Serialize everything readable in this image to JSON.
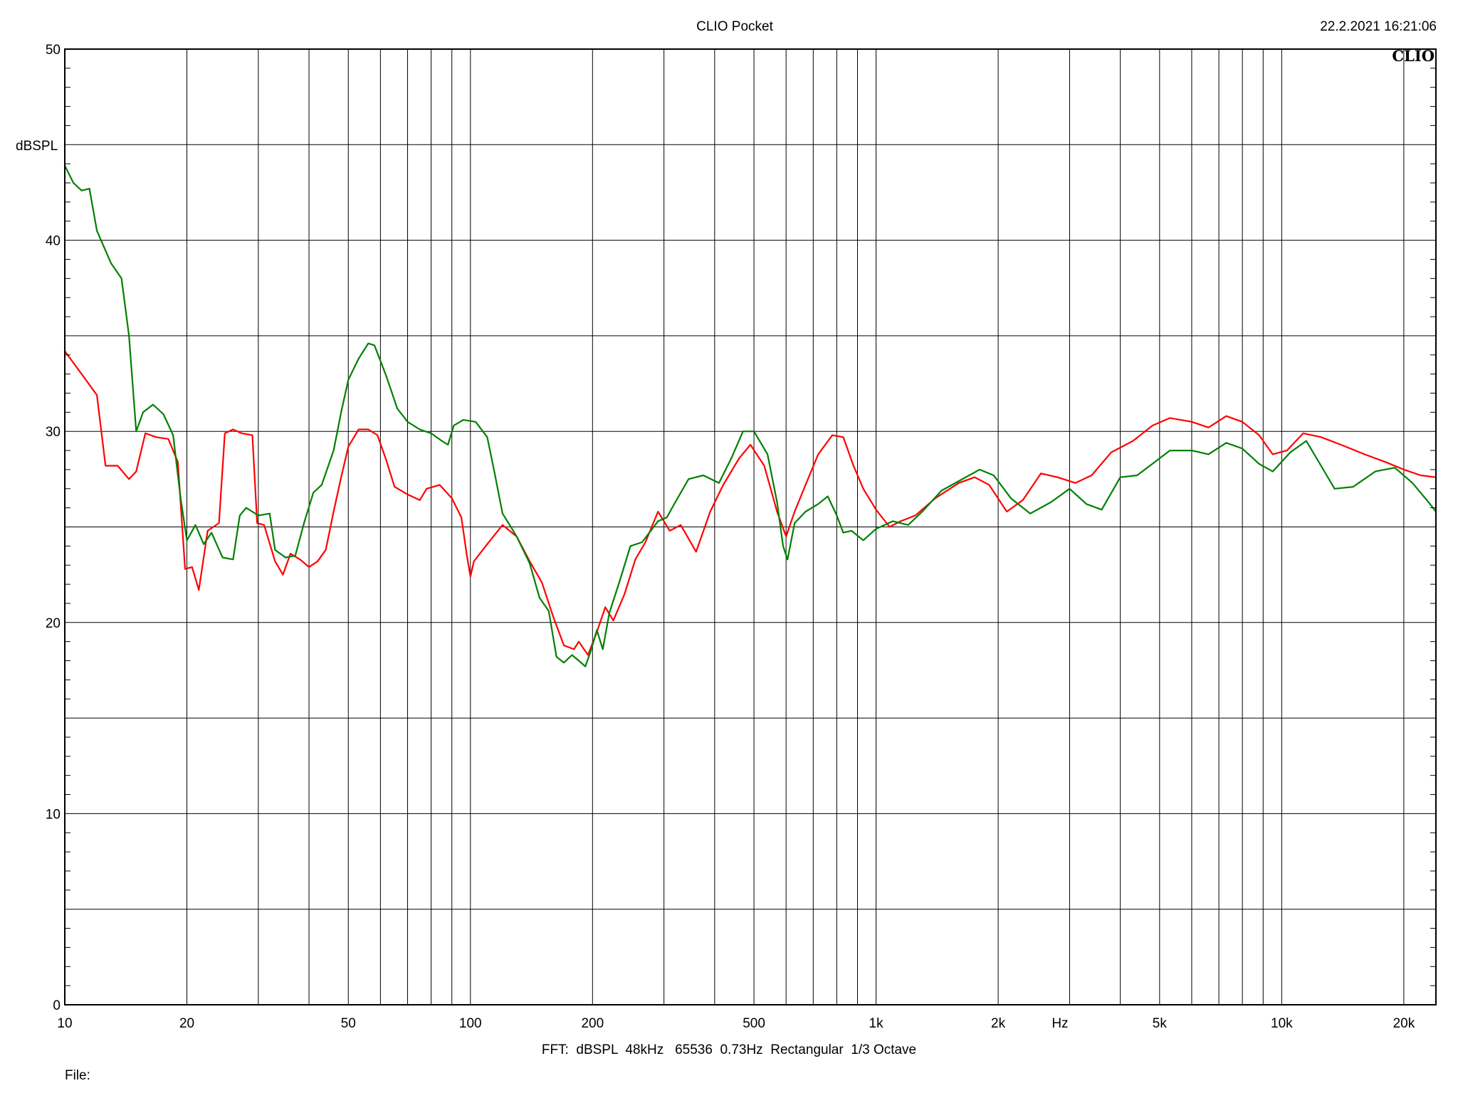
{
  "window": {
    "title": "CLIO Pocket",
    "timestamp": "22.2.2021 16:21:06",
    "logo": "CLIO",
    "footer_info": "FFT:  dBSPL  48kHz   65536  0.73Hz  Rectangular  1/3 Octave",
    "file_label": "File:"
  },
  "colors": {
    "background": "#ffffff",
    "grid": "#000000",
    "series_red": "#ff0000",
    "series_green": "#008000"
  },
  "chart_data": {
    "type": "line",
    "title": "CLIO Pocket",
    "xlabel": "Hz",
    "ylabel": "dBSPL",
    "xscale": "log",
    "xlim": [
      10,
      24000
    ],
    "ylim": [
      0,
      50
    ],
    "grid": true,
    "x_ticks": [
      {
        "value": 10,
        "label": "10"
      },
      {
        "value": 20,
        "label": "20"
      },
      {
        "value": 50,
        "label": "50"
      },
      {
        "value": 100,
        "label": "100"
      },
      {
        "value": 200,
        "label": "200"
      },
      {
        "value": 500,
        "label": "500"
      },
      {
        "value": 1000,
        "label": "1k"
      },
      {
        "value": 2000,
        "label": "2k"
      },
      {
        "value": 5000,
        "label": "5k"
      },
      {
        "value": 10000,
        "label": "10k"
      },
      {
        "value": 20000,
        "label": "20k"
      }
    ],
    "y_ticks": [
      {
        "value": 0,
        "label": "0"
      },
      {
        "value": 10,
        "label": "10"
      },
      {
        "value": 20,
        "label": "20"
      },
      {
        "value": 30,
        "label": "30"
      },
      {
        "value": 40,
        "label": "40"
      },
      {
        "value": 50,
        "label": "50"
      }
    ],
    "series": [
      {
        "color": "#ff0000",
        "points": [
          [
            10,
            34.2
          ],
          [
            11,
            33.0
          ],
          [
            12,
            31.9
          ],
          [
            12.6,
            28.2
          ],
          [
            13.5,
            28.2
          ],
          [
            14.4,
            27.5
          ],
          [
            15,
            27.9
          ],
          [
            15.8,
            29.9
          ],
          [
            16.8,
            29.7
          ],
          [
            18,
            29.6
          ],
          [
            19,
            28.4
          ],
          [
            19.8,
            22.8
          ],
          [
            20.6,
            22.9
          ],
          [
            21.4,
            21.7
          ],
          [
            22.5,
            24.8
          ],
          [
            24,
            25.2
          ],
          [
            24.8,
            29.9
          ],
          [
            26,
            30.1
          ],
          [
            27.3,
            29.9
          ],
          [
            29,
            29.8
          ],
          [
            29.8,
            25.2
          ],
          [
            31,
            25.1
          ],
          [
            33,
            23.2
          ],
          [
            34.5,
            22.5
          ],
          [
            36,
            23.6
          ],
          [
            38,
            23.3
          ],
          [
            40,
            22.9
          ],
          [
            42,
            23.2
          ],
          [
            44,
            23.8
          ],
          [
            46,
            25.8
          ],
          [
            48,
            27.6
          ],
          [
            50,
            29.2
          ],
          [
            53,
            30.1
          ],
          [
            56,
            30.1
          ],
          [
            59,
            29.8
          ],
          [
            62,
            28.5
          ],
          [
            65,
            27.1
          ],
          [
            70,
            26.7
          ],
          [
            75,
            26.4
          ],
          [
            78,
            27.0
          ],
          [
            84,
            27.2
          ],
          [
            90,
            26.5
          ],
          [
            95,
            25.5
          ],
          [
            98,
            23.5
          ],
          [
            100,
            22.4
          ],
          [
            102,
            23.2
          ],
          [
            110,
            24.1
          ],
          [
            120,
            25.1
          ],
          [
            130,
            24.5
          ],
          [
            140,
            23.2
          ],
          [
            150,
            22.1
          ],
          [
            160,
            20.3
          ],
          [
            170,
            18.8
          ],
          [
            180,
            18.6
          ],
          [
            185,
            19.0
          ],
          [
            195,
            18.3
          ],
          [
            205,
            19.5
          ],
          [
            215,
            20.8
          ],
          [
            225,
            20.1
          ],
          [
            240,
            21.5
          ],
          [
            255,
            23.3
          ],
          [
            270,
            24.2
          ],
          [
            290,
            25.8
          ],
          [
            310,
            24.8
          ],
          [
            330,
            25.1
          ],
          [
            360,
            23.7
          ],
          [
            390,
            25.8
          ],
          [
            420,
            27.2
          ],
          [
            460,
            28.6
          ],
          [
            490,
            29.3
          ],
          [
            530,
            28.2
          ],
          [
            570,
            25.8
          ],
          [
            600,
            24.5
          ],
          [
            630,
            25.8
          ],
          [
            670,
            27.2
          ],
          [
            720,
            28.8
          ],
          [
            780,
            29.8
          ],
          [
            830,
            29.7
          ],
          [
            880,
            28.2
          ],
          [
            930,
            27.0
          ],
          [
            1000,
            25.9
          ],
          [
            1080,
            25.0
          ],
          [
            1150,
            25.3
          ],
          [
            1250,
            25.6
          ],
          [
            1400,
            26.5
          ],
          [
            1600,
            27.3
          ],
          [
            1750,
            27.6
          ],
          [
            1900,
            27.2
          ],
          [
            2100,
            25.8
          ],
          [
            2300,
            26.4
          ],
          [
            2550,
            27.8
          ],
          [
            2800,
            27.6
          ],
          [
            3100,
            27.3
          ],
          [
            3400,
            27.7
          ],
          [
            3800,
            28.9
          ],
          [
            4300,
            29.5
          ],
          [
            4800,
            30.3
          ],
          [
            5300,
            30.7
          ],
          [
            6000,
            30.5
          ],
          [
            6600,
            30.2
          ],
          [
            7300,
            30.8
          ],
          [
            8000,
            30.5
          ],
          [
            8800,
            29.8
          ],
          [
            9500,
            28.8
          ],
          [
            10300,
            29.0
          ],
          [
            11300,
            29.9
          ],
          [
            12500,
            29.7
          ],
          [
            14000,
            29.3
          ],
          [
            16000,
            28.8
          ],
          [
            18000,
            28.4
          ],
          [
            20000,
            28.0
          ],
          [
            22000,
            27.7
          ],
          [
            24000,
            27.6
          ]
        ]
      },
      {
        "color": "#008000",
        "points": [
          [
            10,
            43.9
          ],
          [
            10.5,
            43.0
          ],
          [
            11,
            42.6
          ],
          [
            11.5,
            42.7
          ],
          [
            12,
            40.5
          ],
          [
            13,
            38.8
          ],
          [
            13.8,
            38.0
          ],
          [
            14.4,
            35.0
          ],
          [
            15,
            30.0
          ],
          [
            15.6,
            31.0
          ],
          [
            16.5,
            31.4
          ],
          [
            17.5,
            30.9
          ],
          [
            18.5,
            29.8
          ],
          [
            19.3,
            26.5
          ],
          [
            20,
            24.3
          ],
          [
            21,
            25.1
          ],
          [
            22,
            24.1
          ],
          [
            23,
            24.7
          ],
          [
            24.5,
            23.4
          ],
          [
            26,
            23.3
          ],
          [
            27,
            25.6
          ],
          [
            28,
            26.0
          ],
          [
            30,
            25.6
          ],
          [
            32,
            25.7
          ],
          [
            33,
            23.8
          ],
          [
            35,
            23.4
          ],
          [
            37,
            23.5
          ],
          [
            39,
            25.3
          ],
          [
            41,
            26.8
          ],
          [
            43,
            27.2
          ],
          [
            46,
            29.0
          ],
          [
            48,
            31.0
          ],
          [
            50,
            32.7
          ],
          [
            53,
            33.8
          ],
          [
            56,
            34.6
          ],
          [
            58,
            34.5
          ],
          [
            62,
            32.9
          ],
          [
            66,
            31.2
          ],
          [
            70,
            30.5
          ],
          [
            75,
            30.1
          ],
          [
            80,
            29.9
          ],
          [
            85,
            29.5
          ],
          [
            88,
            29.3
          ],
          [
            91,
            30.3
          ],
          [
            96,
            30.6
          ],
          [
            103,
            30.5
          ],
          [
            110,
            29.7
          ],
          [
            115,
            27.7
          ],
          [
            120,
            25.7
          ],
          [
            125,
            25.1
          ],
          [
            130,
            24.5
          ],
          [
            140,
            23.1
          ],
          [
            148,
            21.3
          ],
          [
            156,
            20.6
          ],
          [
            163,
            18.2
          ],
          [
            170,
            17.9
          ],
          [
            178,
            18.3
          ],
          [
            185,
            18.0
          ],
          [
            192,
            17.7
          ],
          [
            198,
            18.5
          ],
          [
            205,
            19.6
          ],
          [
            212,
            18.6
          ],
          [
            220,
            20.5
          ],
          [
            232,
            22.0
          ],
          [
            248,
            24.0
          ],
          [
            265,
            24.2
          ],
          [
            290,
            25.3
          ],
          [
            305,
            25.5
          ],
          [
            320,
            26.3
          ],
          [
            345,
            27.5
          ],
          [
            375,
            27.7
          ],
          [
            410,
            27.3
          ],
          [
            440,
            28.6
          ],
          [
            470,
            30.0
          ],
          [
            500,
            30.0
          ],
          [
            540,
            28.8
          ],
          [
            570,
            26.3
          ],
          [
            590,
            24.0
          ],
          [
            605,
            23.3
          ],
          [
            630,
            25.2
          ],
          [
            670,
            25.8
          ],
          [
            720,
            26.2
          ],
          [
            760,
            26.6
          ],
          [
            800,
            25.6
          ],
          [
            830,
            24.7
          ],
          [
            870,
            24.8
          ],
          [
            930,
            24.3
          ],
          [
            1000,
            24.9
          ],
          [
            1100,
            25.3
          ],
          [
            1200,
            25.1
          ],
          [
            1300,
            25.8
          ],
          [
            1450,
            26.9
          ],
          [
            1600,
            27.4
          ],
          [
            1800,
            28.0
          ],
          [
            1950,
            27.7
          ],
          [
            2150,
            26.5
          ],
          [
            2400,
            25.7
          ],
          [
            2700,
            26.3
          ],
          [
            3000,
            27.0
          ],
          [
            3300,
            26.2
          ],
          [
            3600,
            25.9
          ],
          [
            4000,
            27.6
          ],
          [
            4400,
            27.7
          ],
          [
            4800,
            28.3
          ],
          [
            5300,
            29.0
          ],
          [
            6000,
            29.0
          ],
          [
            6600,
            28.8
          ],
          [
            7300,
            29.4
          ],
          [
            8000,
            29.1
          ],
          [
            8800,
            28.3
          ],
          [
            9500,
            27.9
          ],
          [
            10500,
            28.9
          ],
          [
            11500,
            29.5
          ],
          [
            12500,
            28.2
          ],
          [
            13500,
            27.0
          ],
          [
            15000,
            27.1
          ],
          [
            17000,
            27.9
          ],
          [
            19000,
            28.1
          ],
          [
            21000,
            27.3
          ],
          [
            23000,
            26.3
          ],
          [
            24000,
            25.8
          ]
        ]
      }
    ]
  }
}
